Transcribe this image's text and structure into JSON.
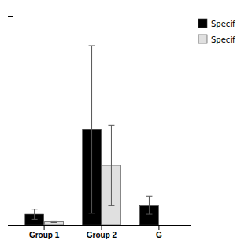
{
  "chart_data": {
    "type": "bar",
    "categories": [
      "Group 1",
      "Group 2",
      "G"
    ],
    "series": [
      {
        "name": "Specif",
        "color": "#000000",
        "values": [
          0.055,
          0.48,
          0.1
        ],
        "errors": [
          0.025,
          0.42,
          0.045
        ]
      },
      {
        "name": "Specif",
        "color": "#e0e0e0",
        "values": [
          0.018,
          0.3,
          0.0
        ],
        "errors": [
          0.004,
          0.2,
          0.0
        ]
      }
    ],
    "ylim": [
      0,
      1.05
    ],
    "tick_labels": "x",
    "grid": false,
    "legend": "right"
  }
}
